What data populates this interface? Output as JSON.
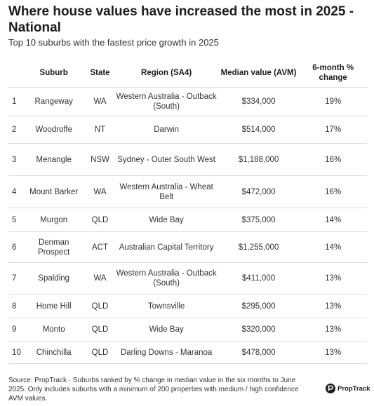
{
  "title": "Where house values have increased the most in 2025 - National",
  "subtitle": "Top 10 suburbs with the fastest price growth in 2025",
  "table": {
    "headers": {
      "rank": "",
      "suburb": "Suburb",
      "state": "State",
      "region": "Region (SA4)",
      "value": "Median value (AVM)",
      "change": "6-month % change"
    },
    "rows": [
      {
        "rank": "1",
        "suburb": "Rangeway",
        "state": "WA",
        "region": "Western Australia - Outback (South)",
        "value": "$334,000",
        "change": "19%"
      },
      {
        "rank": "2",
        "suburb": "Woodroffe",
        "state": "NT",
        "region": "Darwin",
        "value": "$514,000",
        "change": "17%"
      },
      {
        "rank": "3",
        "suburb": "Menangle",
        "state": "NSW",
        "region": "Sydney - Outer South West",
        "value": "$1,188,000",
        "change": "16%"
      },
      {
        "rank": "4",
        "suburb": "Mount Barker",
        "state": "WA",
        "region": "Western Australia - Wheat Belt",
        "value": "$472,000",
        "change": "16%"
      },
      {
        "rank": "5",
        "suburb": "Murgon",
        "state": "QLD",
        "region": "Wide Bay",
        "value": "$375,000",
        "change": "14%"
      },
      {
        "rank": "6",
        "suburb": "Denman Prospect",
        "state": "ACT",
        "region": "Australian Capital Territory",
        "value": "$1,255,000",
        "change": "14%"
      },
      {
        "rank": "7",
        "suburb": "Spalding",
        "state": "WA",
        "region": "Western Australia - Outback (South)",
        "value": "$411,000",
        "change": "13%"
      },
      {
        "rank": "8",
        "suburb": "Home Hill",
        "state": "QLD",
        "region": "Townsville",
        "value": "$295,000",
        "change": "13%"
      },
      {
        "rank": "9",
        "suburb": "Monto",
        "state": "QLD",
        "region": "Wide Bay",
        "value": "$320,000",
        "change": "13%"
      },
      {
        "rank": "10",
        "suburb": "Chinchilla",
        "state": "QLD",
        "region": "Darling Downs - Maranoa",
        "value": "$478,000",
        "change": "13%"
      }
    ]
  },
  "source": "Source: PropTrack · Suburbs ranked by % change in median value in the six months to June 2025. Only includes suburbs with a minimum of 200 properties with medium / high confidence AVM values.",
  "logo": {
    "text": "PropTrack",
    "icon": "proptrack-logo-icon"
  }
}
